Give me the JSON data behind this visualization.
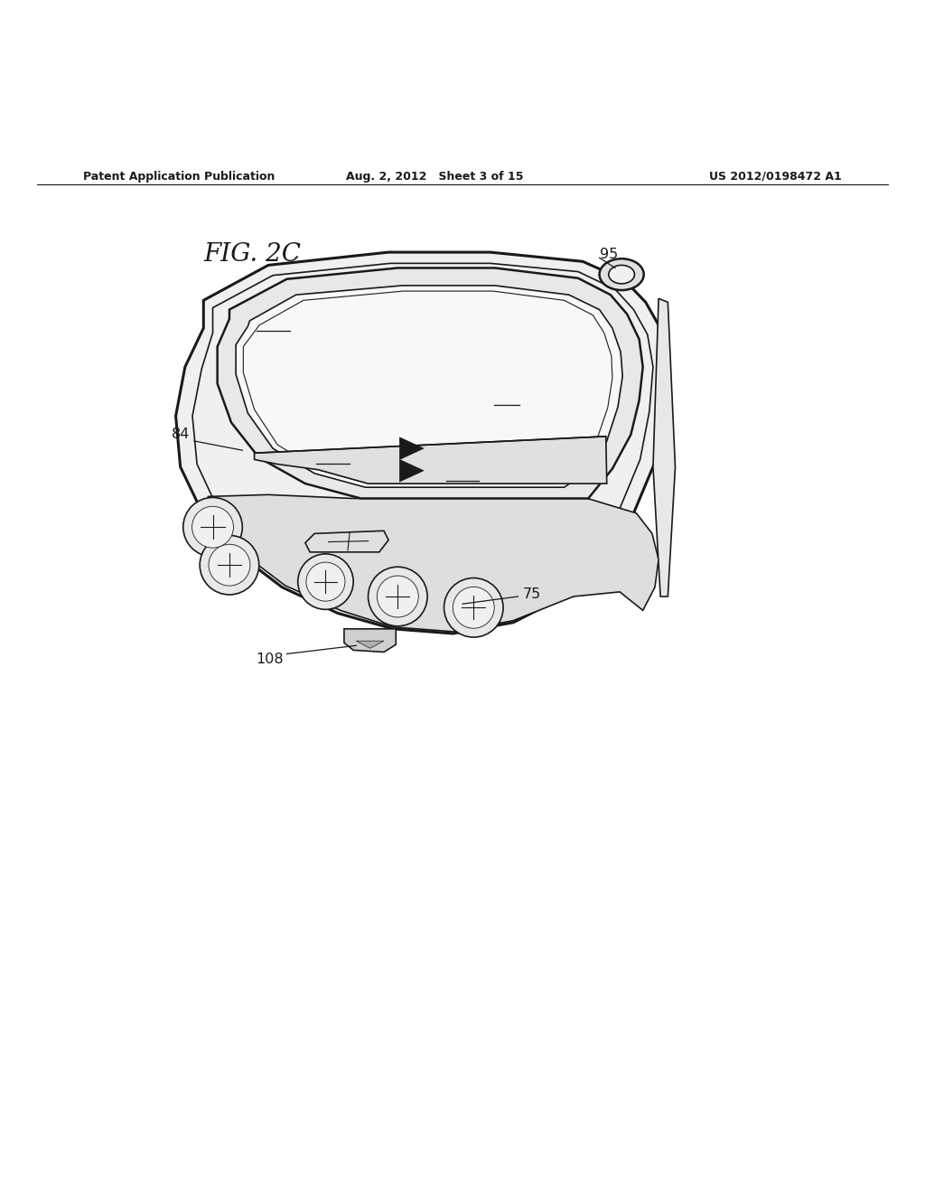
{
  "header_left": "Patent Application Publication",
  "header_mid": "Aug. 2, 2012   Sheet 3 of 15",
  "header_right": "US 2012/0198472 A1",
  "fig_label": "FIG. 2C",
  "bg_color": "#ffffff",
  "line_color": "#1a1a1a"
}
